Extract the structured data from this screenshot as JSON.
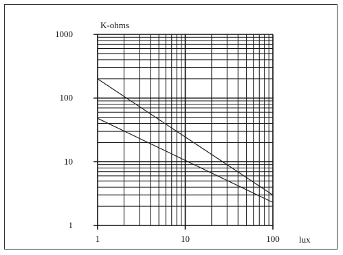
{
  "chart_data": {
    "type": "line",
    "xscale": "log",
    "yscale": "log",
    "xlim": [
      1,
      100
    ],
    "ylim": [
      1,
      1000
    ],
    "xlabel": "lux",
    "ylabel": "K-ohms",
    "x_ticks": [
      1,
      10,
      100
    ],
    "y_ticks": [
      1,
      10,
      100,
      1000
    ],
    "x_tick_labels": [
      "1",
      "10",
      "100"
    ],
    "y_tick_labels": [
      "1",
      "10",
      "100",
      "1000"
    ],
    "grid": true,
    "series": [
      {
        "x": [
          1,
          100
        ],
        "y": [
          200,
          3
        ]
      },
      {
        "x": [
          1,
          100
        ],
        "y": [
          48,
          2.3
        ]
      }
    ],
    "colors": {
      "line": "#222222",
      "grid": "#111111",
      "frame": "#333333"
    }
  }
}
